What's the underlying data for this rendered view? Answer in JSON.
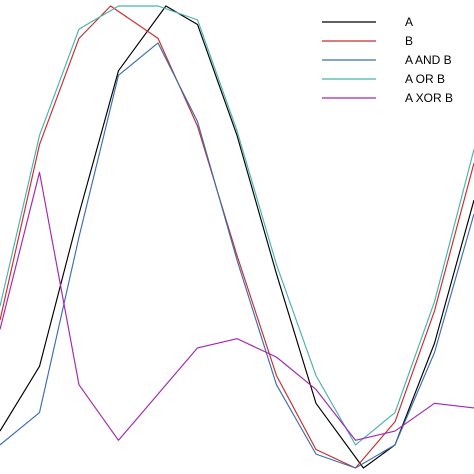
{
  "chart_data": {
    "type": "line",
    "title": "",
    "xlabel": "",
    "ylabel": "",
    "xlim": [
      0,
      1.2
    ],
    "ylim": [
      0,
      1
    ],
    "grid": false,
    "legend_position": "top-right",
    "series": [
      {
        "name": "A",
        "color": "#000000",
        "shape": "sine staircase",
        "period": 1.0,
        "phase_peak_x": 0.42,
        "steps": 64,
        "points": [
          [
            0.0,
            0.08
          ],
          [
            0.1,
            0.22
          ],
          [
            0.2,
            0.55
          ],
          [
            0.3,
            0.86
          ],
          [
            0.42,
            1.0
          ],
          [
            0.5,
            0.96
          ],
          [
            0.6,
            0.72
          ],
          [
            0.7,
            0.42
          ],
          [
            0.8,
            0.14
          ],
          [
            0.92,
            0.0
          ],
          [
            1.0,
            0.05
          ],
          [
            1.1,
            0.27
          ],
          [
            1.2,
            0.58
          ]
        ]
      },
      {
        "name": "B",
        "color": "#cc2b2b",
        "shape": "sine staircase",
        "period": 1.04,
        "phase_peak_x": 0.28,
        "steps": 64,
        "points": [
          [
            0.0,
            0.32
          ],
          [
            0.1,
            0.7
          ],
          [
            0.2,
            0.93
          ],
          [
            0.28,
            1.0
          ],
          [
            0.4,
            0.93
          ],
          [
            0.5,
            0.74
          ],
          [
            0.6,
            0.46
          ],
          [
            0.7,
            0.2
          ],
          [
            0.8,
            0.04
          ],
          [
            0.9,
            0.0
          ],
          [
            1.0,
            0.1
          ],
          [
            1.1,
            0.34
          ],
          [
            1.2,
            0.66
          ]
        ]
      },
      {
        "name": "A AND B",
        "color": "#3a6fb0",
        "shape": "bitwise and",
        "points": [
          [
            0.0,
            0.05
          ],
          [
            0.1,
            0.12
          ],
          [
            0.2,
            0.5
          ],
          [
            0.3,
            0.85
          ],
          [
            0.4,
            0.92
          ],
          [
            0.5,
            0.75
          ],
          [
            0.6,
            0.45
          ],
          [
            0.7,
            0.18
          ],
          [
            0.8,
            0.03
          ],
          [
            0.9,
            0.0
          ],
          [
            1.0,
            0.05
          ],
          [
            1.1,
            0.25
          ],
          [
            1.2,
            0.55
          ]
        ]
      },
      {
        "name": "A OR B",
        "color": "#48b3ad",
        "shape": "bitwise or",
        "points": [
          [
            0.0,
            0.35
          ],
          [
            0.1,
            0.72
          ],
          [
            0.2,
            0.95
          ],
          [
            0.3,
            1.0
          ],
          [
            0.4,
            1.0
          ],
          [
            0.5,
            0.97
          ],
          [
            0.6,
            0.73
          ],
          [
            0.7,
            0.44
          ],
          [
            0.8,
            0.2
          ],
          [
            0.9,
            0.05
          ],
          [
            1.0,
            0.12
          ],
          [
            1.1,
            0.36
          ],
          [
            1.2,
            0.69
          ]
        ]
      },
      {
        "name": "A XOR B",
        "color": "#a326b0",
        "shape": "bitwise xor",
        "points": [
          [
            0.0,
            0.3
          ],
          [
            0.1,
            0.64
          ],
          [
            0.2,
            0.18
          ],
          [
            0.3,
            0.06
          ],
          [
            0.4,
            0.16
          ],
          [
            0.5,
            0.26
          ],
          [
            0.6,
            0.28
          ],
          [
            0.7,
            0.24
          ],
          [
            0.8,
            0.17
          ],
          [
            0.9,
            0.06
          ],
          [
            1.0,
            0.08
          ],
          [
            1.1,
            0.14
          ],
          [
            1.2,
            0.13
          ]
        ]
      }
    ]
  }
}
